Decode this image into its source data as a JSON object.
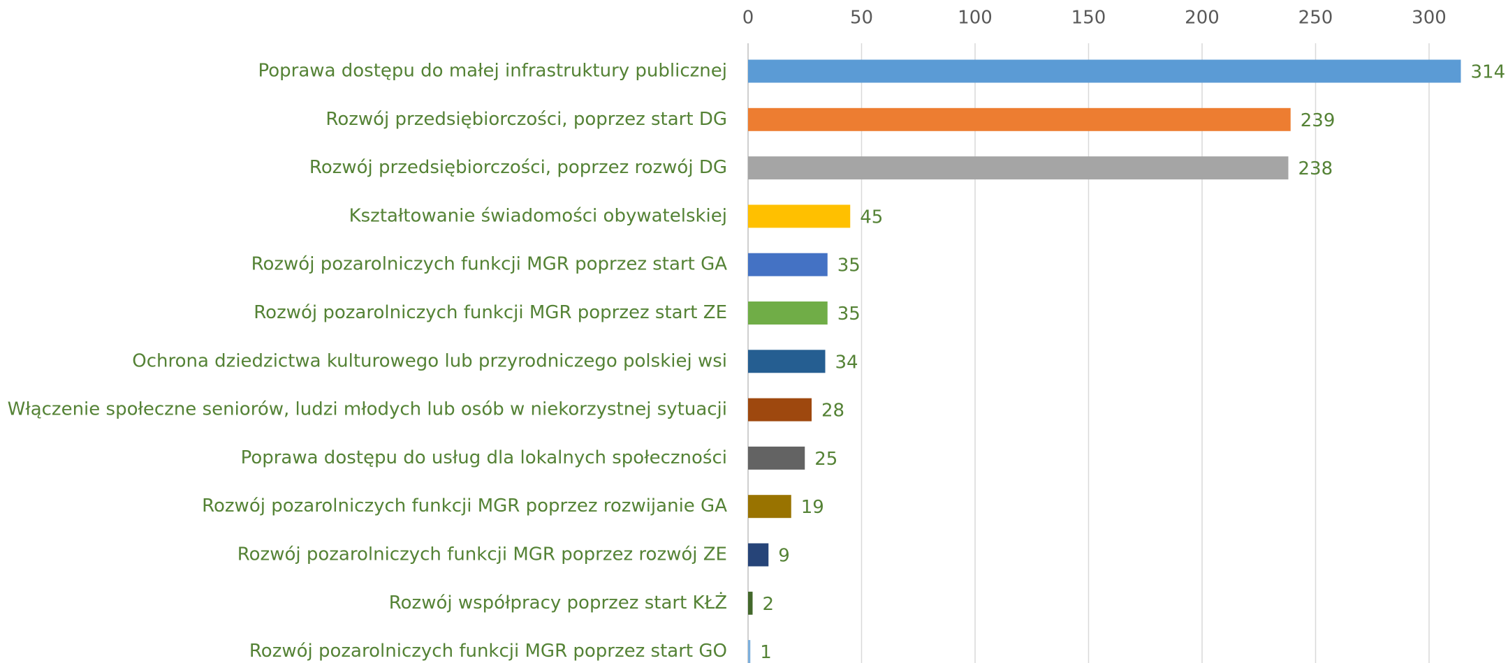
{
  "chart_data": {
    "type": "bar",
    "orientation": "horizontal",
    "categories": [
      "Poprawa dostępu do małej infrastruktury publicznej",
      "Rozwój przedsiębiorczości, poprzez start DG",
      "Rozwój przedsiębiorczości, poprzez rozwój DG",
      "Kształtowanie świadomości obywatelskiej",
      "Rozwój pozarolniczych funkcji MGR poprzez start GA",
      "Rozwój pozarolniczych funkcji MGR poprzez start ZE",
      "Ochrona dziedzictwa kulturowego lub przyrodniczego polskiej wsi",
      "Włączenie społeczne seniorów, ludzi młodych lub osób w niekorzystnej sytuacji",
      "Poprawa dostępu do usług dla lokalnych społeczności",
      "Rozwój pozarolniczych funkcji MGR poprzez rozwijanie GA",
      "Rozwój pozarolniczych funkcji MGR poprzez rozwój ZE",
      "Rozwój współpracy poprzez start KŁŻ",
      "Rozwój pozarolniczych funkcji MGR poprzez start GO"
    ],
    "values": [
      314,
      239,
      238,
      45,
      35,
      35,
      34,
      28,
      25,
      19,
      9,
      2,
      1
    ],
    "colors": [
      "#5b9bd5",
      "#ed7d31",
      "#a5a5a5",
      "#ffc000",
      "#4472c4",
      "#70ad47",
      "#255e91",
      "#9e480e",
      "#636363",
      "#997300",
      "#264478",
      "#43682b",
      "#7cafdd"
    ],
    "xlim": [
      0,
      332
    ],
    "xticks": [
      0,
      50,
      100,
      150,
      200,
      250,
      300
    ],
    "grid": true
  }
}
